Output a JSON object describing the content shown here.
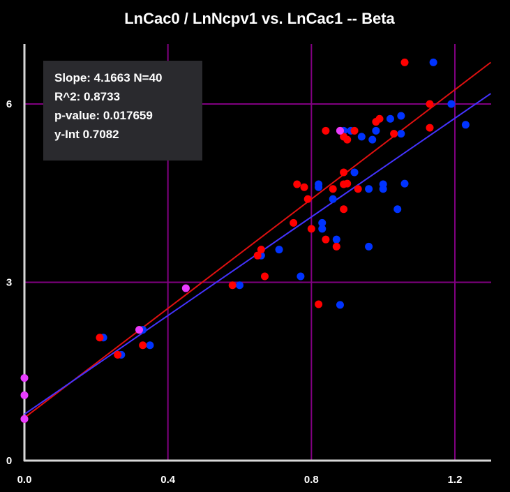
{
  "chart_data": {
    "type": "scatter",
    "title": "LnCac0 / LnNcpv1 vs. LnCac1 -- Beta",
    "xlabel": "",
    "ylabel": "",
    "xlim": [
      0.0,
      1.3
    ],
    "ylim": [
      0,
      7.0
    ],
    "x_ticks": [
      {
        "value": 0.0,
        "label": "0.0"
      },
      {
        "value": 0.4,
        "label": "0.4"
      },
      {
        "value": 0.8,
        "label": "0.8"
      },
      {
        "value": 1.2,
        "label": "1.2"
      }
    ],
    "y_ticks": [
      {
        "value": 0,
        "label": "0"
      },
      {
        "value": 3,
        "label": "3"
      },
      {
        "value": 6,
        "label": "6"
      }
    ],
    "grid": true,
    "stats_box": {
      "slope": "Slope: 4.1663 N=40",
      "r2": "R^2: 0.8733",
      "pvalue": "p-value: 0.017659",
      "yint": "y-Int 0.7082"
    },
    "colors": {
      "red": "#ff0000",
      "blue": "#0033ff",
      "overlap": "#e83cff",
      "grid": "#800080",
      "red_line": "#e01010",
      "blue_line": "#4433ff",
      "axis": "#d8d8d8"
    },
    "series": [
      {
        "name": "red",
        "color": "#ff0000",
        "fit": {
          "slope": 4.6,
          "intercept": 0.72
        },
        "points": [
          [
            0.0,
            0.7
          ],
          [
            0.21,
            2.07
          ],
          [
            0.26,
            1.78
          ],
          [
            0.32,
            2.2
          ],
          [
            0.33,
            1.94
          ],
          [
            0.45,
            2.9
          ],
          [
            0.58,
            2.95
          ],
          [
            0.65,
            3.45
          ],
          [
            0.66,
            3.55
          ],
          [
            0.67,
            3.1
          ],
          [
            0.75,
            4.0
          ],
          [
            0.76,
            4.65
          ],
          [
            0.78,
            4.6
          ],
          [
            0.79,
            4.4
          ],
          [
            0.8,
            3.9
          ],
          [
            0.82,
            2.63
          ],
          [
            0.84,
            3.72
          ],
          [
            0.84,
            5.55
          ],
          [
            0.86,
            4.57
          ],
          [
            0.87,
            3.6
          ],
          [
            0.88,
            5.55
          ],
          [
            0.89,
            4.65
          ],
          [
            0.89,
            4.85
          ],
          [
            0.89,
            4.23
          ],
          [
            0.89,
            5.45
          ],
          [
            0.9,
            4.66
          ],
          [
            0.9,
            5.4
          ],
          [
            0.92,
            5.55
          ],
          [
            0.93,
            4.57
          ],
          [
            0.98,
            5.7
          ],
          [
            0.99,
            5.75
          ],
          [
            1.03,
            5.5
          ],
          [
            1.06,
            6.7
          ],
          [
            1.13,
            6.0
          ],
          [
            1.13,
            5.6
          ]
        ]
      },
      {
        "name": "blue",
        "color": "#0033ff",
        "fit": {
          "slope": 4.15,
          "intercept": 0.78
        },
        "points": [
          [
            0.22,
            2.07
          ],
          [
            0.27,
            1.78
          ],
          [
            0.33,
            2.2
          ],
          [
            0.35,
            1.94
          ],
          [
            0.45,
            2.9
          ],
          [
            0.6,
            2.95
          ],
          [
            0.66,
            3.45
          ],
          [
            0.71,
            3.55
          ],
          [
            0.77,
            3.1
          ],
          [
            0.82,
            4.65
          ],
          [
            0.82,
            4.6
          ],
          [
            0.83,
            4.0
          ],
          [
            0.83,
            3.9
          ],
          [
            0.86,
            4.4
          ],
          [
            0.87,
            3.72
          ],
          [
            0.88,
            2.62
          ],
          [
            0.89,
            5.55
          ],
          [
            0.91,
            5.55
          ],
          [
            0.92,
            4.85
          ],
          [
            0.94,
            5.45
          ],
          [
            0.96,
            4.57
          ],
          [
            0.96,
            3.6
          ],
          [
            0.97,
            5.4
          ],
          [
            0.98,
            5.55
          ],
          [
            1.0,
            4.57
          ],
          [
            1.0,
            4.65
          ],
          [
            1.02,
            5.75
          ],
          [
            1.04,
            4.23
          ],
          [
            1.05,
            5.5
          ],
          [
            1.05,
            5.8
          ],
          [
            1.06,
            4.66
          ],
          [
            1.14,
            6.7
          ],
          [
            1.19,
            6.0
          ],
          [
            1.23,
            5.65
          ]
        ]
      }
    ],
    "overlap_points": [
      [
        0.0,
        1.39
      ],
      [
        0.0,
        1.1
      ],
      [
        0.0,
        0.7
      ],
      [
        0.32,
        2.2
      ],
      [
        0.45,
        2.9
      ],
      [
        0.88,
        5.55
      ]
    ]
  }
}
